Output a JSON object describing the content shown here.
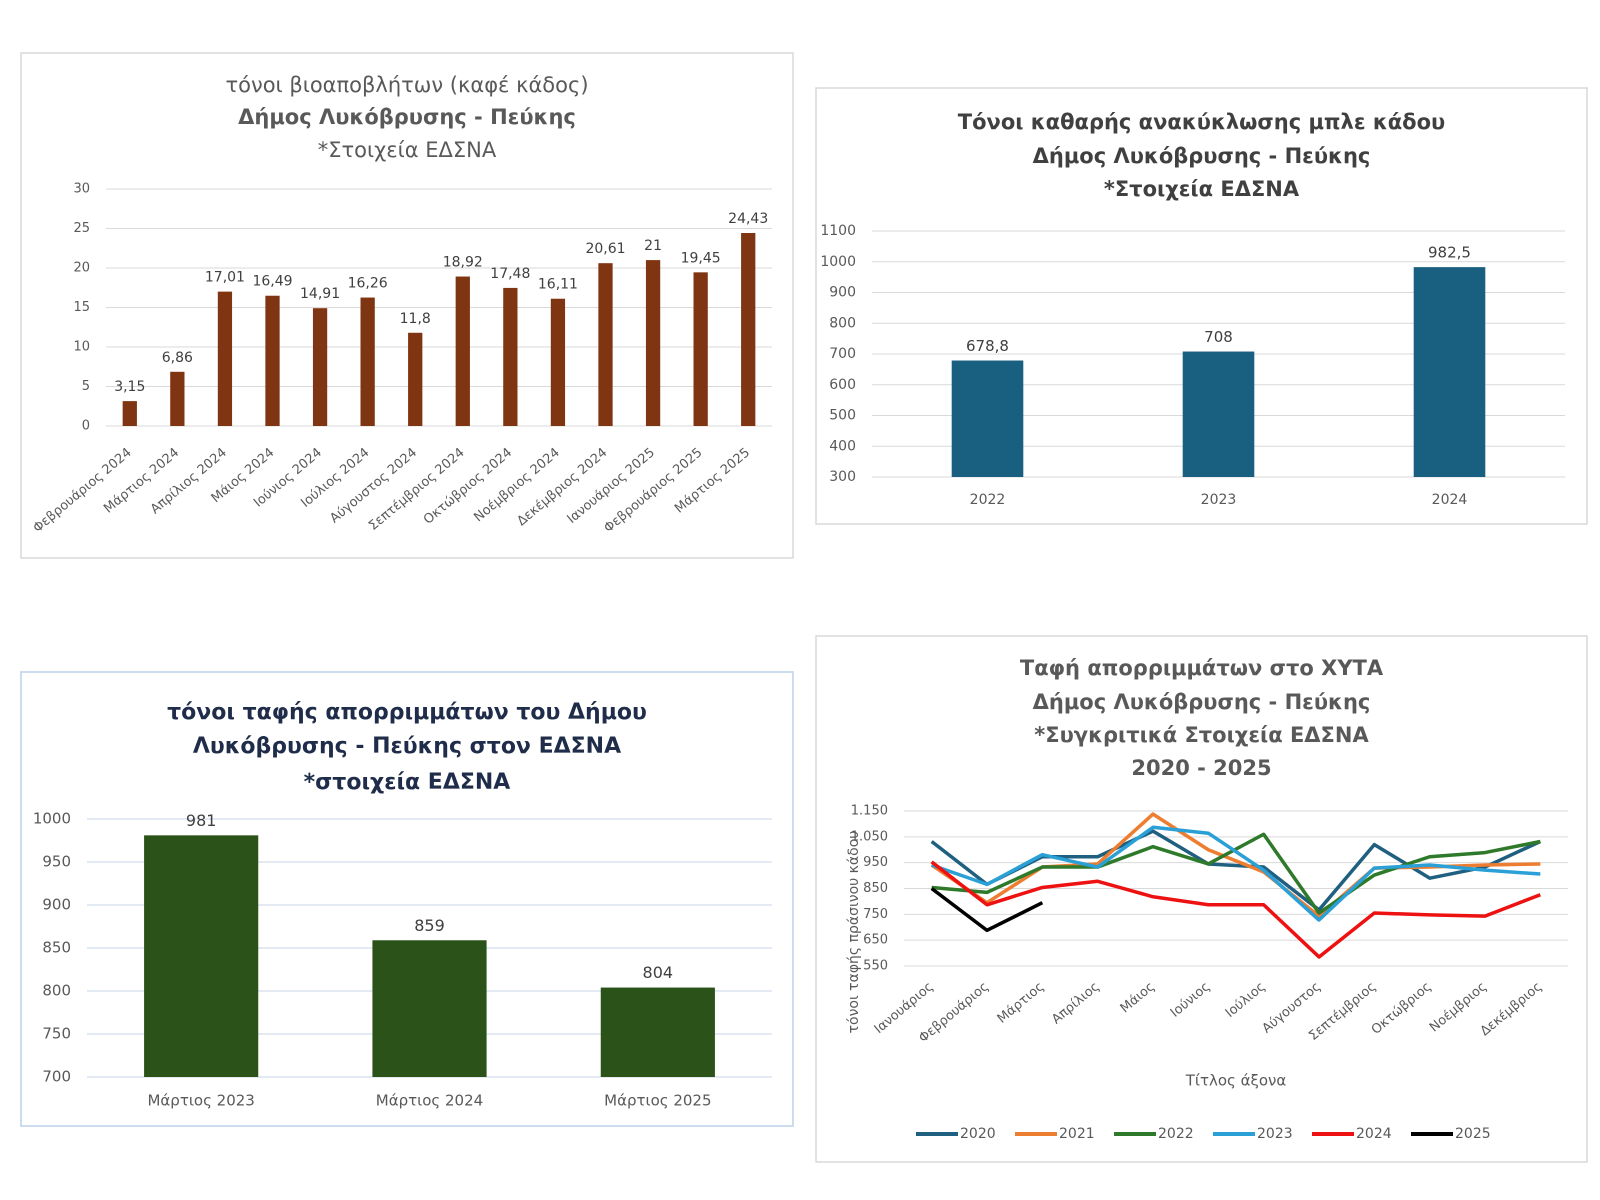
{
  "chart_data": [
    {
      "type": "bar",
      "title": [
        "τόνοι βιοαποβλήτων (καφέ κάδος)",
        "Δήμος Λυκόβρυσης - Πεύκης",
        "*Στοιχεία ΕΔΣΝΑ"
      ],
      "categories": [
        "Φεβρουάριος 2024",
        "Μάρτιος 2024",
        "Απρίλιος 2024",
        "Μάιος 2024",
        "Ιούνιος 2024",
        "Ιούλιος 2024",
        "Αύγουστος 2024",
        "Σεπτέμβριος 2024",
        "Οκτώβριος 2024",
        "Νοέμβριος 2024",
        "Δεκέμβριος 2024",
        "Ιανουάριος 2025",
        "Φεβρουάριος 2025",
        "Μάρτιος 2025"
      ],
      "values": [
        3.15,
        6.86,
        17.01,
        16.49,
        14.91,
        16.26,
        11.8,
        18.92,
        17.48,
        16.11,
        20.61,
        21,
        19.45,
        24.43
      ],
      "value_labels": [
        "3,15",
        "6,86",
        "17,01",
        "16,49",
        "14,91",
        "16,26",
        "11,8",
        "18,92",
        "17,48",
        "16,11",
        "20,61",
        "21",
        "19,45",
        "24,43"
      ],
      "color": "#7f3511",
      "ylim": [
        0,
        30
      ],
      "yticks": [
        0,
        5,
        10,
        15,
        20,
        25,
        30
      ],
      "grid": true
    },
    {
      "type": "bar",
      "title": [
        "Τόνοι καθαρής ανακύκλωσης μπλε κάδου",
        "Δήμος Λυκόβρυσης - Πεύκης",
        "*Στοιχεία ΕΔΣΝΑ"
      ],
      "categories": [
        "2022",
        "2023",
        "2024"
      ],
      "values": [
        678.8,
        708,
        982.5
      ],
      "value_labels": [
        "678,8",
        "708",
        "982,5"
      ],
      "color": "#185f80",
      "ylim": [
        300,
        1100
      ],
      "yticks": [
        300,
        400,
        500,
        600,
        700,
        800,
        900,
        1000,
        1100
      ],
      "grid": true
    },
    {
      "type": "bar",
      "title": [
        "τόνοι ταφής απορριμμάτων του Δήμου",
        "Λυκόβρυσης - Πεύκης στον ΕΔΣΝΑ",
        "*στοιχεία ΕΔΣΝΑ"
      ],
      "categories": [
        "Μάρτιος 2023",
        "Μάρτιος 2024",
        "Μάρτιος 2025"
      ],
      "values": [
        981,
        859,
        804
      ],
      "color": "#2a5219",
      "ylim": [
        700,
        1000
      ],
      "yticks": [
        700,
        750,
        800,
        850,
        900,
        950,
        1000
      ],
      "grid": true
    },
    {
      "type": "line",
      "title": [
        "Ταφή απορριμμάτων στο ΧΥΤΑ",
        "Δήμος Λυκόβρυσης - Πεύκης",
        "*Συγκριτικά Στοιχεία ΕΔΣΝΑ",
        "2020 - 2025"
      ],
      "x_label": "Τίτλος άξονα",
      "y_label": "τόνοι ταφής πράσινου κάδου",
      "categories": [
        "Ιανουάριος",
        "Φεβρουάριος",
        "Μάρτιος",
        "Απρίλιος",
        "Μάιος",
        "Ιούνιος",
        "Ιούλιος",
        "Αύγουστος",
        "Σεπτέμβριος",
        "Οκτώβριος",
        "Νοέμβριος",
        "Δεκέμβριος"
      ],
      "series": [
        {
          "name": "2020",
          "color": "#1f5f80",
          "values": [
            1032,
            866,
            973,
            973,
            1072,
            945,
            933,
            767,
            1020,
            890,
            933,
            1032
          ]
        },
        {
          "name": "2021",
          "color": "#ed7d31",
          "values": [
            941,
            795,
            933,
            945,
            1138,
            1000,
            914,
            743,
            929,
            933,
            941,
            945
          ]
        },
        {
          "name": "2022",
          "color": "#2e7a2a",
          "values": [
            854,
            835,
            933,
            933,
            1012,
            945,
            1060,
            755,
            902,
            973,
            989,
            1032
          ]
        },
        {
          "name": "2023",
          "color": "#2aa0d6",
          "values": [
            941,
            866,
            981,
            933,
            1087,
            1064,
            921,
            728,
            929,
            941,
            921,
            906
          ]
        },
        {
          "name": "2024",
          "color": "#ee1111",
          "values": [
            953,
            787,
            854,
            878,
            818,
            787,
            787,
            585,
            755,
            748,
            743,
            826
          ]
        },
        {
          "name": "2025",
          "color": "#000000",
          "values": [
            850,
            688,
            795,
            null,
            null,
            null,
            null,
            null,
            null,
            null,
            null,
            null
          ]
        }
      ],
      "ylim": [
        550,
        1150
      ],
      "yticks": [
        550,
        650,
        750,
        850,
        950,
        {
          "value": 1050,
          "label": "1.050"
        },
        {
          "value": 1150,
          "label": "1.150"
        }
      ],
      "grid": true,
      "legend": "bottom"
    }
  ]
}
